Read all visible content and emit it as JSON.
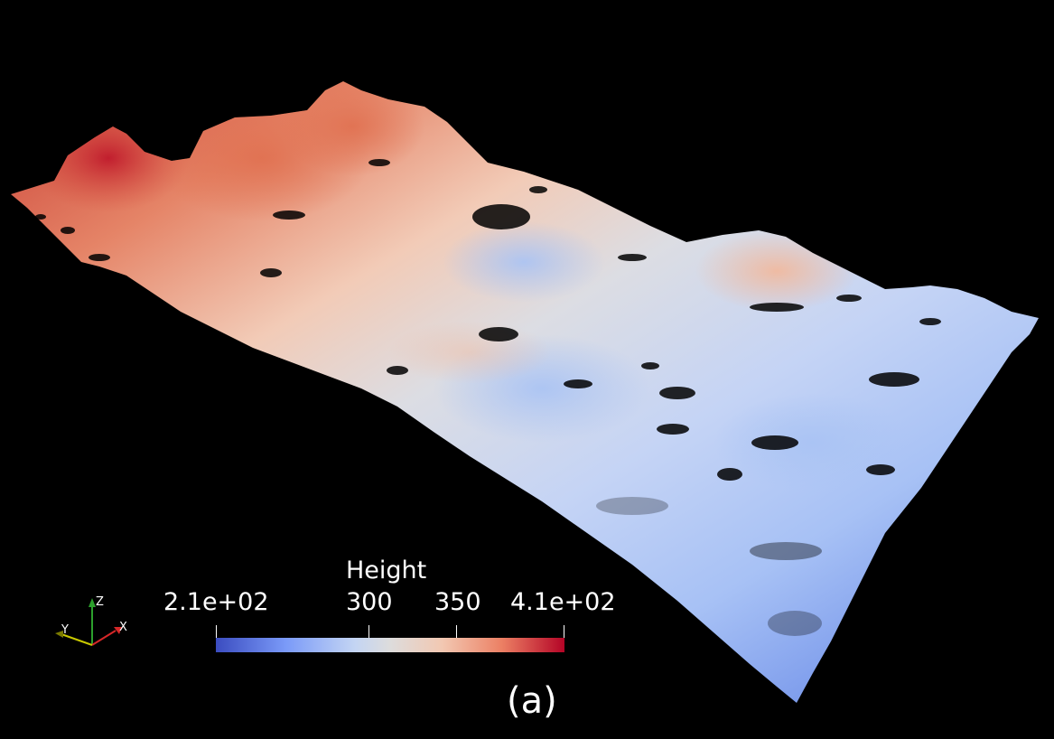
{
  "colors": {
    "background": "#000000",
    "low": "#3c4fc0",
    "mid": "#dddddd",
    "high": "#b40426",
    "axis_x": "#d62728",
    "axis_y": "#e0e000",
    "axis_z": "#2ca02c"
  },
  "legend": {
    "title": "Height",
    "ticks": [
      "2.1e+02",
      "300",
      "350",
      "4.1e+02"
    ]
  },
  "axes": {
    "x_label": "X",
    "y_label": "Y",
    "z_label": "Z"
  },
  "figure_label": "(a)"
}
